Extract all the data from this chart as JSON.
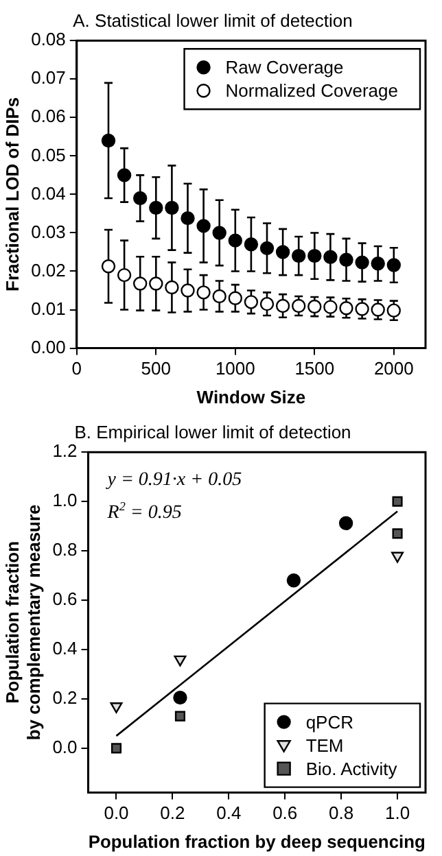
{
  "chart_data": [
    {
      "type": "scatter",
      "title": "A. Statistical lower limit of detection",
      "xlabel": "Window Size",
      "ylabel": "Fractional LOD of DIPs",
      "x": [
        200,
        300,
        400,
        500,
        600,
        700,
        800,
        900,
        1000,
        1100,
        1200,
        1300,
        1400,
        1500,
        1600,
        1700,
        1800,
        1900,
        2000
      ],
      "series": [
        {
          "name": "Raw Coverage",
          "color": "#000000",
          "values": [
            0.054,
            0.045,
            0.039,
            0.0365,
            0.0365,
            0.0338,
            0.0318,
            0.03,
            0.028,
            0.027,
            0.026,
            0.025,
            0.024,
            0.024,
            0.0237,
            0.023,
            0.0223,
            0.022,
            0.0216
          ],
          "errors": [
            0.015,
            0.007,
            0.006,
            0.008,
            0.011,
            0.009,
            0.0095,
            0.0085,
            0.008,
            0.007,
            0.0065,
            0.006,
            0.005,
            0.006,
            0.006,
            0.0055,
            0.005,
            0.0045,
            0.0045
          ]
        },
        {
          "name": "Normalized Coverage",
          "color": "#ffffff",
          "values": [
            0.0213,
            0.019,
            0.0168,
            0.0168,
            0.0158,
            0.015,
            0.0145,
            0.0135,
            0.013,
            0.012,
            0.0115,
            0.011,
            0.011,
            0.0108,
            0.0107,
            0.0104,
            0.0102,
            0.01,
            0.0098
          ],
          "errors": [
            0.0095,
            0.009,
            0.007,
            0.007,
            0.0065,
            0.0055,
            0.0045,
            0.004,
            0.0035,
            0.003,
            0.003,
            0.003,
            0.0025,
            0.0025,
            0.0025,
            0.0025,
            0.0025,
            0.0025,
            0.0025
          ]
        }
      ],
      "marker": "circle",
      "xlim": [
        0,
        2200
      ],
      "xticks": [
        0,
        500,
        1000,
        1500,
        2000
      ],
      "ylim": [
        0,
        0.08
      ],
      "yticks": [
        {
          "value": 0,
          "label": "0.00"
        },
        {
          "value": 0.01,
          "label": "0.01"
        },
        {
          "value": 0.02,
          "label": "0.02"
        },
        {
          "value": 0.03,
          "label": "0.03"
        },
        {
          "value": 0.04,
          "label": "0.04"
        },
        {
          "value": 0.05,
          "label": "0.05"
        },
        {
          "value": 0.06,
          "label": "0.06"
        },
        {
          "value": 0.07,
          "label": "0.07"
        },
        {
          "value": 0.08,
          "label": "0.08"
        }
      ],
      "grid": false,
      "legend": "top right"
    },
    {
      "type": "scatter",
      "title": "B. Empirical lower limit of detection",
      "xlabel": "Population fraction by deep sequencing",
      "ylabel": "Population fraction\nby complementary measure",
      "annotations": [
        "y = 0.91·x + 0.05",
        "R$^{2}$ = 0.95"
      ],
      "series": [
        {
          "name": "qPCR",
          "color": "#000000",
          "marker": "circle",
          "x": [
            0.227,
            0.631,
            0.817
          ],
          "values": [
            0.205,
            0.68,
            0.912
          ]
        },
        {
          "name": "TEM",
          "color": "#e0e0e0",
          "marker": "triangle",
          "x": [
            0,
            0.227,
            1.0
          ],
          "values": [
            0.17,
            0.36,
            0.78
          ]
        },
        {
          "name": "Bio. Activity",
          "color": "#555555",
          "marker": "square",
          "x": [
            0,
            0.227,
            1.0,
            1.0
          ],
          "values": [
            0.0,
            0.13,
            1.0,
            0.87
          ]
        },
        {
          "type": "line",
          "color": "#000000",
          "x": [
            0,
            1
          ],
          "values": [
            0.05,
            0.96
          ]
        }
      ],
      "xlim": [
        -0.1,
        1.1
      ],
      "xticks": [
        {
          "value": 0,
          "label": "0.0"
        },
        {
          "value": 0.2,
          "label": "0.2"
        },
        {
          "value": 0.4,
          "label": "0.4"
        },
        {
          "value": 0.6,
          "label": "0.6"
        },
        {
          "value": 0.8,
          "label": "0.8"
        },
        {
          "value": 1,
          "label": "1.0"
        }
      ],
      "ylim": [
        -0.18,
        1.2
      ],
      "yticks": [
        {
          "value": 0,
          "label": "0.0"
        },
        {
          "value": 0.2,
          "label": "0.2"
        },
        {
          "value": 0.4,
          "label": "0.4"
        },
        {
          "value": 0.6,
          "label": "0.6"
        },
        {
          "value": 0.8,
          "label": "0.8"
        },
        {
          "value": 1,
          "label": "1.0"
        },
        {
          "value": 1.2,
          "label": "1.2"
        }
      ],
      "grid": false,
      "legend": "bottom right"
    }
  ]
}
